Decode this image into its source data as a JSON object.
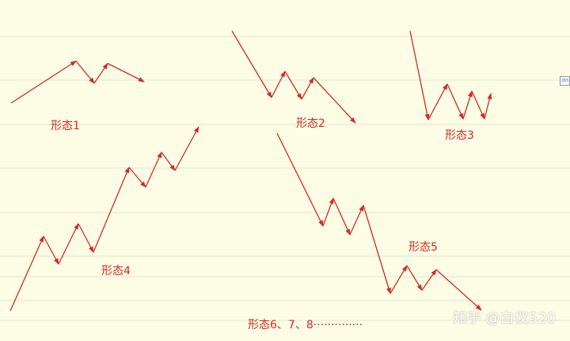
{
  "labels": {
    "pattern1": "形态1",
    "pattern2": "形态2",
    "pattern3": "形态3",
    "pattern4": "形态4",
    "pattern5": "形态5",
    "pattern678": "形态6、7、8··············"
  },
  "edge_tag": "265",
  "watermark": "知乎 @白仪520",
  "colors": {
    "background": "#fdfde5",
    "grid_line": "#e4e4d4",
    "arrow": "#d22b2b"
  }
}
